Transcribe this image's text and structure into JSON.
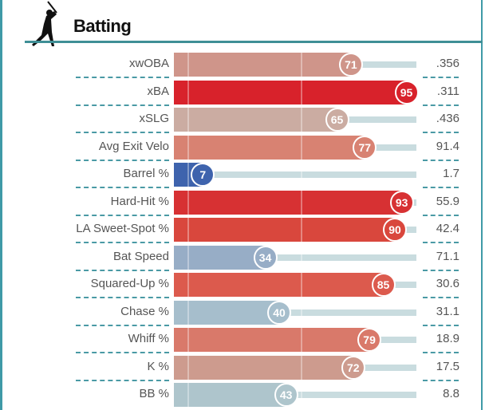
{
  "header": {
    "title": "Batting",
    "icon": "batter-silhouette-icon"
  },
  "rows": [
    {
      "label": "xwOBA",
      "percentile": 71,
      "value": ".356",
      "color": "#cf958a"
    },
    {
      "label": "xBA",
      "percentile": 95,
      "value": ".311",
      "color": "#d8222b"
    },
    {
      "label": "xSLG",
      "percentile": 65,
      "value": ".436",
      "color": "#cbaca2"
    },
    {
      "label": "Avg Exit Velo",
      "percentile": 77,
      "value": "91.4",
      "color": "#d88272"
    },
    {
      "label": "Barrel %",
      "percentile": 7,
      "value": "1.7",
      "color": "#3e63ad"
    },
    {
      "label": "Hard-Hit %",
      "percentile": 93,
      "value": "55.9",
      "color": "#d73133"
    },
    {
      "label": "LA Sweet-Spot %",
      "percentile": 90,
      "value": "42.4",
      "color": "#d9473d"
    },
    {
      "label": "Bat Speed",
      "percentile": 34,
      "value": "71.1",
      "color": "#97adc6"
    },
    {
      "label": "Squared-Up %",
      "percentile": 85,
      "value": "30.6",
      "color": "#dc5a4d"
    },
    {
      "label": "Chase %",
      "percentile": 40,
      "value": "31.1",
      "color": "#a6becc"
    },
    {
      "label": "Whiff %",
      "percentile": 79,
      "value": "18.9",
      "color": "#d9796a"
    },
    {
      "label": "K %",
      "percentile": 72,
      "value": "17.5",
      "color": "#cd9b8e"
    },
    {
      "label": "BB %",
      "percentile": 43,
      "value": "8.8",
      "color": "#aec5cc"
    }
  ]
}
